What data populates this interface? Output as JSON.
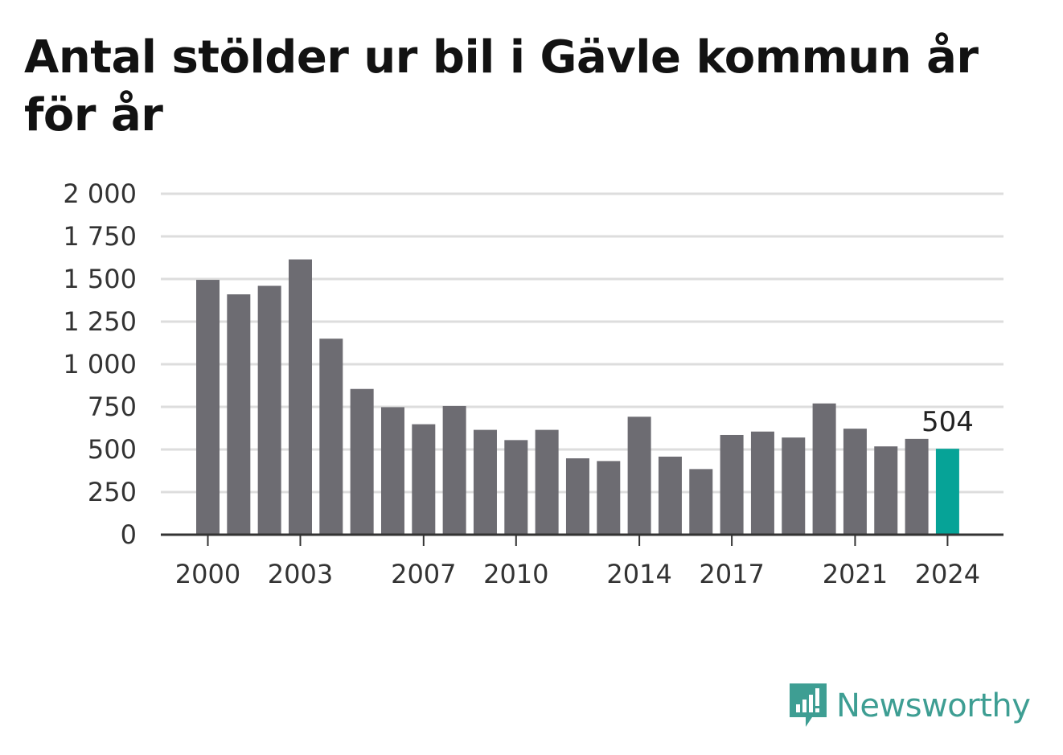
{
  "title": "Antal stölder ur bil i Gävle kommun år för år",
  "brand": {
    "name": "Newsworthy",
    "color": "#3e9e93"
  },
  "colors": {
    "bar": "#6d6c72",
    "highlight": "#06a397",
    "grid": "#dddddd",
    "axis": "#333333"
  },
  "chart_data": {
    "type": "bar",
    "title": "Antal stölder ur bil i Gävle kommun år för år",
    "xlabel": "",
    "ylabel": "",
    "categories": [
      2000,
      2001,
      2002,
      2003,
      2004,
      2005,
      2006,
      2007,
      2008,
      2009,
      2010,
      2011,
      2012,
      2013,
      2014,
      2015,
      2016,
      2017,
      2018,
      2019,
      2020,
      2021,
      2022,
      2023,
      2024
    ],
    "values": [
      1495,
      1410,
      1460,
      1615,
      1150,
      855,
      748,
      648,
      755,
      615,
      555,
      615,
      448,
      432,
      692,
      458,
      385,
      585,
      605,
      570,
      770,
      622,
      518,
      562,
      504
    ],
    "highlight_index": 24,
    "highlight_label": "504",
    "x_tick_labels": [
      "2000",
      "2003",
      "2007",
      "2010",
      "2014",
      "2017",
      "2021",
      "2024"
    ],
    "x_ticks": [
      2000,
      2003,
      2007,
      2010,
      2014,
      2017,
      2021,
      2024
    ],
    "y_ticks": [
      0,
      250,
      500,
      750,
      1000,
      1250,
      1500,
      1750,
      2000
    ],
    "y_tick_labels": [
      "0",
      "250",
      "500",
      "750",
      "1 000",
      "1 250",
      "1 500",
      "1 750",
      "2 000"
    ],
    "ylim": [
      0,
      2000
    ],
    "grid": true
  }
}
